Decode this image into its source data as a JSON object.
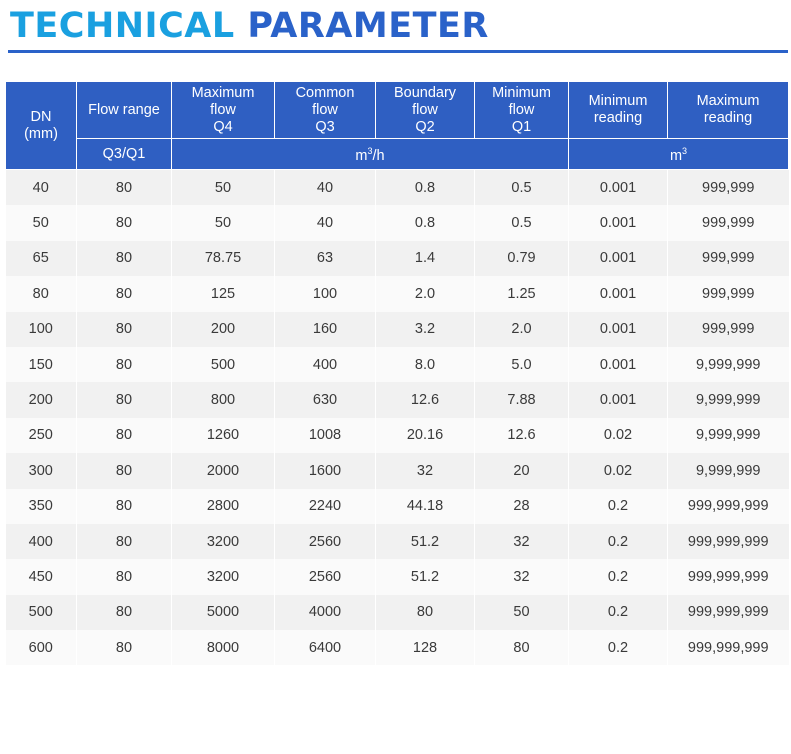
{
  "title": {
    "part1": "TECHNICAL",
    "part2": "PARAMETER"
  },
  "colors": {
    "title_part1": "#1aa0e0",
    "title_part2": "#2a62c9",
    "header_bg": "#2f5fc2",
    "row_bg": "#f1f1f1"
  },
  "table": {
    "headers": {
      "dn": "DN",
      "dn_unit": "(mm)",
      "flow_range": "Flow range",
      "max_flow": [
        "Maximum",
        "flow",
        "Q4"
      ],
      "common_flow": [
        "Common",
        "flow",
        "Q3"
      ],
      "boundary_flow": [
        "Boundary",
        "flow",
        "Q2"
      ],
      "minimum_flow": [
        "Minimum",
        "flow",
        "Q1"
      ],
      "min_reading": [
        "Minimum",
        "reading"
      ],
      "max_reading": [
        "Maximum",
        "reading"
      ],
      "flow_range_sub": "Q3/Q1",
      "flow_unit_base": "m",
      "flow_unit_sup": "3",
      "flow_unit_suffix": "/h",
      "reading_unit_base": "m",
      "reading_unit_sup": "3"
    },
    "rows": [
      [
        "40",
        "80",
        "50",
        "40",
        "0.8",
        "0.5",
        "0.001",
        "999,999"
      ],
      [
        "50",
        "80",
        "50",
        "40",
        "0.8",
        "0.5",
        "0.001",
        "999,999"
      ],
      [
        "65",
        "80",
        "78.75",
        "63",
        "1.4",
        "0.79",
        "0.001",
        "999,999"
      ],
      [
        "80",
        "80",
        "125",
        "100",
        "2.0",
        "1.25",
        "0.001",
        "999,999"
      ],
      [
        "100",
        "80",
        "200",
        "160",
        "3.2",
        "2.0",
        "0.001",
        "999,999"
      ],
      [
        "150",
        "80",
        "500",
        "400",
        "8.0",
        "5.0",
        "0.001",
        "9,999,999"
      ],
      [
        "200",
        "80",
        "800",
        "630",
        "12.6",
        "7.88",
        "0.001",
        "9,999,999"
      ],
      [
        "250",
        "80",
        "1260",
        "1008",
        "20.16",
        "12.6",
        "0.02",
        "9,999,999"
      ],
      [
        "300",
        "80",
        "2000",
        "1600",
        "32",
        "20",
        "0.02",
        "9,999,999"
      ],
      [
        "350",
        "80",
        "2800",
        "2240",
        "44.18",
        "28",
        "0.2",
        "999,999,999"
      ],
      [
        "400",
        "80",
        "3200",
        "2560",
        "51.2",
        "32",
        "0.2",
        "999,999,999"
      ],
      [
        "450",
        "80",
        "3200",
        "2560",
        "51.2",
        "32",
        "0.2",
        "999,999,999"
      ],
      [
        "500",
        "80",
        "5000",
        "4000",
        "80",
        "50",
        "0.2",
        "999,999,999"
      ],
      [
        "600",
        "80",
        "8000",
        "6400",
        "128",
        "80",
        "0.2",
        "999,999,999"
      ]
    ]
  }
}
